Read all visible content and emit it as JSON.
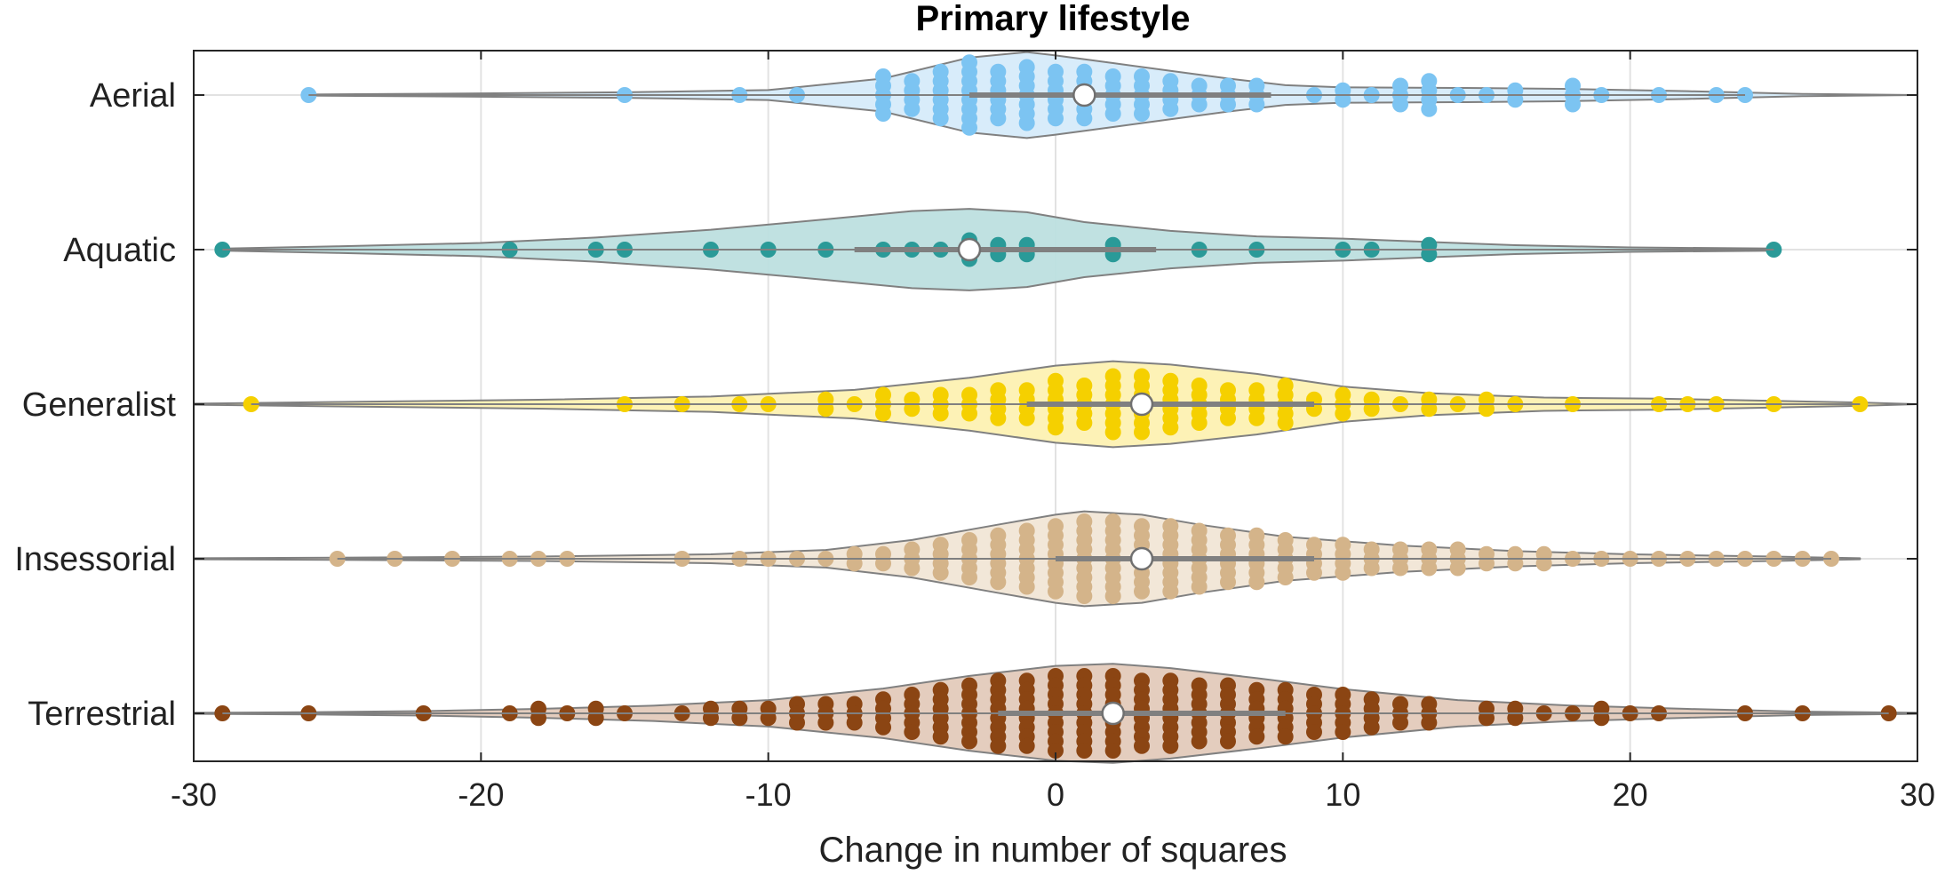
{
  "chart_data": {
    "type": "violin",
    "title": "Primary lifestyle",
    "xlabel": "Change in number of squares",
    "ylabel": "",
    "xlim": [
      -30,
      30
    ],
    "xticks": [
      -30,
      -20,
      -10,
      0,
      10,
      20,
      30
    ],
    "xtick_labels": [
      "-30",
      "-20",
      "-10",
      "0",
      "10",
      "20",
      "30"
    ],
    "grid": "x",
    "categories": [
      "Aerial",
      "Aquatic",
      "Generalist",
      "Insessorial",
      "Terrestrial"
    ],
    "series": [
      {
        "name": "Aerial",
        "color": "#7cc4f2",
        "fill": "#d6ecfa",
        "median": 1,
        "iqr": [
          -3,
          7.5
        ],
        "range": [
          -26,
          24
        ],
        "points": [
          [
            -26,
            1
          ],
          [
            -15,
            1
          ],
          [
            -11,
            1
          ],
          [
            -9,
            1
          ],
          [
            -6,
            5
          ],
          [
            -5,
            4
          ],
          [
            -4,
            6
          ],
          [
            -3,
            8
          ],
          [
            -2,
            6
          ],
          [
            -1,
            7
          ],
          [
            0,
            6
          ],
          [
            1,
            6
          ],
          [
            2,
            5
          ],
          [
            3,
            5
          ],
          [
            4,
            4
          ],
          [
            5,
            3
          ],
          [
            6,
            3
          ],
          [
            7,
            3
          ],
          [
            9,
            1
          ],
          [
            10,
            2
          ],
          [
            11,
            1
          ],
          [
            12,
            3
          ],
          [
            13,
            4
          ],
          [
            14,
            1
          ],
          [
            15,
            1
          ],
          [
            16,
            2
          ],
          [
            18,
            3
          ],
          [
            19,
            1
          ],
          [
            21,
            1
          ],
          [
            23,
            1
          ],
          [
            24,
            1
          ]
        ],
        "violin": [
          [
            -26,
            0.01
          ],
          [
            -20,
            0.03
          ],
          [
            -15,
            0.05
          ],
          [
            -10,
            0.09
          ],
          [
            -6,
            0.3
          ],
          [
            -3,
            0.68
          ],
          [
            -1,
            0.78
          ],
          [
            0,
            0.72
          ],
          [
            2,
            0.58
          ],
          [
            4,
            0.44
          ],
          [
            6,
            0.3
          ],
          [
            8,
            0.18
          ],
          [
            10,
            0.14
          ],
          [
            14,
            0.13
          ],
          [
            18,
            0.11
          ],
          [
            22,
            0.07
          ],
          [
            26,
            0.02
          ],
          [
            30,
            0.0
          ]
        ]
      },
      {
        "name": "Aquatic",
        "color": "#2a9a98",
        "fill": "#bde0e0",
        "median": -3,
        "iqr": [
          -7,
          3.5
        ],
        "range": [
          -29,
          25
        ],
        "points": [
          [
            -29,
            1
          ],
          [
            -19,
            1
          ],
          [
            -16,
            1
          ],
          [
            -15,
            1
          ],
          [
            -12,
            1
          ],
          [
            -10,
            1
          ],
          [
            -8,
            1
          ],
          [
            -6,
            1
          ],
          [
            -5,
            1
          ],
          [
            -4,
            1
          ],
          [
            -3,
            3
          ],
          [
            -2,
            2
          ],
          [
            -1,
            2
          ],
          [
            2,
            2
          ],
          [
            5,
            1
          ],
          [
            7,
            1
          ],
          [
            10,
            1
          ],
          [
            11,
            1
          ],
          [
            13,
            2
          ],
          [
            25,
            1
          ]
        ],
        "violin": [
          [
            -29,
            0.02
          ],
          [
            -25,
            0.06
          ],
          [
            -20,
            0.12
          ],
          [
            -16,
            0.22
          ],
          [
            -12,
            0.36
          ],
          [
            -8,
            0.55
          ],
          [
            -5,
            0.7
          ],
          [
            -3,
            0.74
          ],
          [
            -1,
            0.68
          ],
          [
            1,
            0.5
          ],
          [
            4,
            0.34
          ],
          [
            7,
            0.24
          ],
          [
            10,
            0.2
          ],
          [
            13,
            0.14
          ],
          [
            16,
            0.08
          ],
          [
            20,
            0.04
          ],
          [
            25,
            0.02
          ]
        ]
      },
      {
        "name": "Generalist",
        "color": "#f5d000",
        "fill": "#fdf2b3",
        "median": 3,
        "iqr": [
          -1,
          9
        ],
        "range": [
          -28,
          28
        ],
        "points": [
          [
            -28,
            1
          ],
          [
            -15,
            1
          ],
          [
            -13,
            1
          ],
          [
            -11,
            1
          ],
          [
            -10,
            1
          ],
          [
            -8,
            2
          ],
          [
            -7,
            1
          ],
          [
            -6,
            3
          ],
          [
            -5,
            2
          ],
          [
            -4,
            3
          ],
          [
            -3,
            3
          ],
          [
            -2,
            4
          ],
          [
            -1,
            4
          ],
          [
            0,
            6
          ],
          [
            1,
            5
          ],
          [
            2,
            7
          ],
          [
            3,
            7
          ],
          [
            4,
            6
          ],
          [
            5,
            5
          ],
          [
            6,
            4
          ],
          [
            7,
            4
          ],
          [
            8,
            5
          ],
          [
            9,
            2
          ],
          [
            10,
            3
          ],
          [
            11,
            2
          ],
          [
            12,
            1
          ],
          [
            13,
            2
          ],
          [
            14,
            1
          ],
          [
            15,
            2
          ],
          [
            16,
            1
          ],
          [
            18,
            1
          ],
          [
            21,
            1
          ],
          [
            22,
            1
          ],
          [
            23,
            1
          ],
          [
            25,
            1
          ],
          [
            28,
            1
          ]
        ],
        "violin": [
          [
            -30,
            0.01
          ],
          [
            -25,
            0.04
          ],
          [
            -18,
            0.08
          ],
          [
            -12,
            0.14
          ],
          [
            -7,
            0.26
          ],
          [
            -3,
            0.48
          ],
          [
            0,
            0.7
          ],
          [
            2,
            0.78
          ],
          [
            4,
            0.72
          ],
          [
            7,
            0.55
          ],
          [
            10,
            0.32
          ],
          [
            13,
            0.2
          ],
          [
            17,
            0.12
          ],
          [
            21,
            0.1
          ],
          [
            25,
            0.06
          ],
          [
            28,
            0.03
          ],
          [
            30,
            0.0
          ]
        ]
      },
      {
        "name": "Insessorial",
        "color": "#d4b48a",
        "fill": "#f2e6d6",
        "median": 3,
        "iqr": [
          0,
          9
        ],
        "range": [
          -25,
          27
        ],
        "points": [
          [
            -25,
            1
          ],
          [
            -23,
            1
          ],
          [
            -21,
            1
          ],
          [
            -19,
            1
          ],
          [
            -18,
            1
          ],
          [
            -17,
            1
          ],
          [
            -13,
            1
          ],
          [
            -11,
            1
          ],
          [
            -10,
            1
          ],
          [
            -9,
            1
          ],
          [
            -8,
            1
          ],
          [
            -7,
            2
          ],
          [
            -6,
            2
          ],
          [
            -5,
            3
          ],
          [
            -4,
            4
          ],
          [
            -3,
            5
          ],
          [
            -2,
            6
          ],
          [
            -1,
            7
          ],
          [
            0,
            8
          ],
          [
            1,
            9
          ],
          [
            2,
            9
          ],
          [
            3,
            8
          ],
          [
            4,
            8
          ],
          [
            5,
            7
          ],
          [
            6,
            6
          ],
          [
            7,
            6
          ],
          [
            8,
            5
          ],
          [
            9,
            4
          ],
          [
            10,
            4
          ],
          [
            11,
            3
          ],
          [
            12,
            3
          ],
          [
            13,
            3
          ],
          [
            14,
            3
          ],
          [
            15,
            2
          ],
          [
            16,
            2
          ],
          [
            17,
            2
          ],
          [
            18,
            1
          ],
          [
            19,
            1
          ],
          [
            20,
            1
          ],
          [
            21,
            1
          ],
          [
            22,
            1
          ],
          [
            23,
            1
          ],
          [
            24,
            1
          ],
          [
            25,
            1
          ],
          [
            26,
            1
          ],
          [
            27,
            1
          ]
        ],
        "violin": [
          [
            -30,
            0.01
          ],
          [
            -25,
            0.02
          ],
          [
            -18,
            0.04
          ],
          [
            -12,
            0.08
          ],
          [
            -8,
            0.16
          ],
          [
            -5,
            0.34
          ],
          [
            -2,
            0.62
          ],
          [
            0,
            0.8
          ],
          [
            1,
            0.86
          ],
          [
            3,
            0.8
          ],
          [
            5,
            0.62
          ],
          [
            8,
            0.4
          ],
          [
            12,
            0.24
          ],
          [
            16,
            0.14
          ],
          [
            20,
            0.08
          ],
          [
            25,
            0.04
          ],
          [
            28,
            0.01
          ]
        ]
      },
      {
        "name": "Terrestrial",
        "color": "#8b4513",
        "fill": "#e3cbbb",
        "median": 2,
        "iqr": [
          -2,
          8
        ],
        "range": [
          -29,
          29
        ],
        "points": [
          [
            -29,
            1
          ],
          [
            -26,
            1
          ],
          [
            -22,
            1
          ],
          [
            -19,
            1
          ],
          [
            -18,
            2
          ],
          [
            -17,
            1
          ],
          [
            -16,
            2
          ],
          [
            -15,
            1
          ],
          [
            -13,
            1
          ],
          [
            -12,
            2
          ],
          [
            -11,
            2
          ],
          [
            -10,
            2
          ],
          [
            -9,
            3
          ],
          [
            -8,
            3
          ],
          [
            -7,
            3
          ],
          [
            -6,
            4
          ],
          [
            -5,
            5
          ],
          [
            -4,
            6
          ],
          [
            -3,
            7
          ],
          [
            -2,
            8
          ],
          [
            -1,
            8
          ],
          [
            0,
            9
          ],
          [
            1,
            9
          ],
          [
            2,
            9
          ],
          [
            3,
            8
          ],
          [
            4,
            8
          ],
          [
            5,
            7
          ],
          [
            6,
            7
          ],
          [
            7,
            6
          ],
          [
            8,
            6
          ],
          [
            9,
            5
          ],
          [
            10,
            5
          ],
          [
            11,
            4
          ],
          [
            12,
            3
          ],
          [
            13,
            3
          ],
          [
            15,
            2
          ],
          [
            16,
            2
          ],
          [
            17,
            1
          ],
          [
            18,
            1
          ],
          [
            19,
            2
          ],
          [
            20,
            1
          ],
          [
            21,
            1
          ],
          [
            24,
            1
          ],
          [
            26,
            1
          ],
          [
            29,
            1
          ]
        ],
        "violin": [
          [
            -30,
            0.01
          ],
          [
            -26,
            0.02
          ],
          [
            -22,
            0.04
          ],
          [
            -18,
            0.08
          ],
          [
            -14,
            0.14
          ],
          [
            -10,
            0.24
          ],
          [
            -6,
            0.45
          ],
          [
            -3,
            0.68
          ],
          [
            0,
            0.86
          ],
          [
            2,
            0.9
          ],
          [
            4,
            0.82
          ],
          [
            7,
            0.64
          ],
          [
            10,
            0.44
          ],
          [
            14,
            0.24
          ],
          [
            18,
            0.14
          ],
          [
            22,
            0.08
          ],
          [
            26,
            0.03
          ],
          [
            30,
            0.01
          ]
        ]
      }
    ]
  }
}
